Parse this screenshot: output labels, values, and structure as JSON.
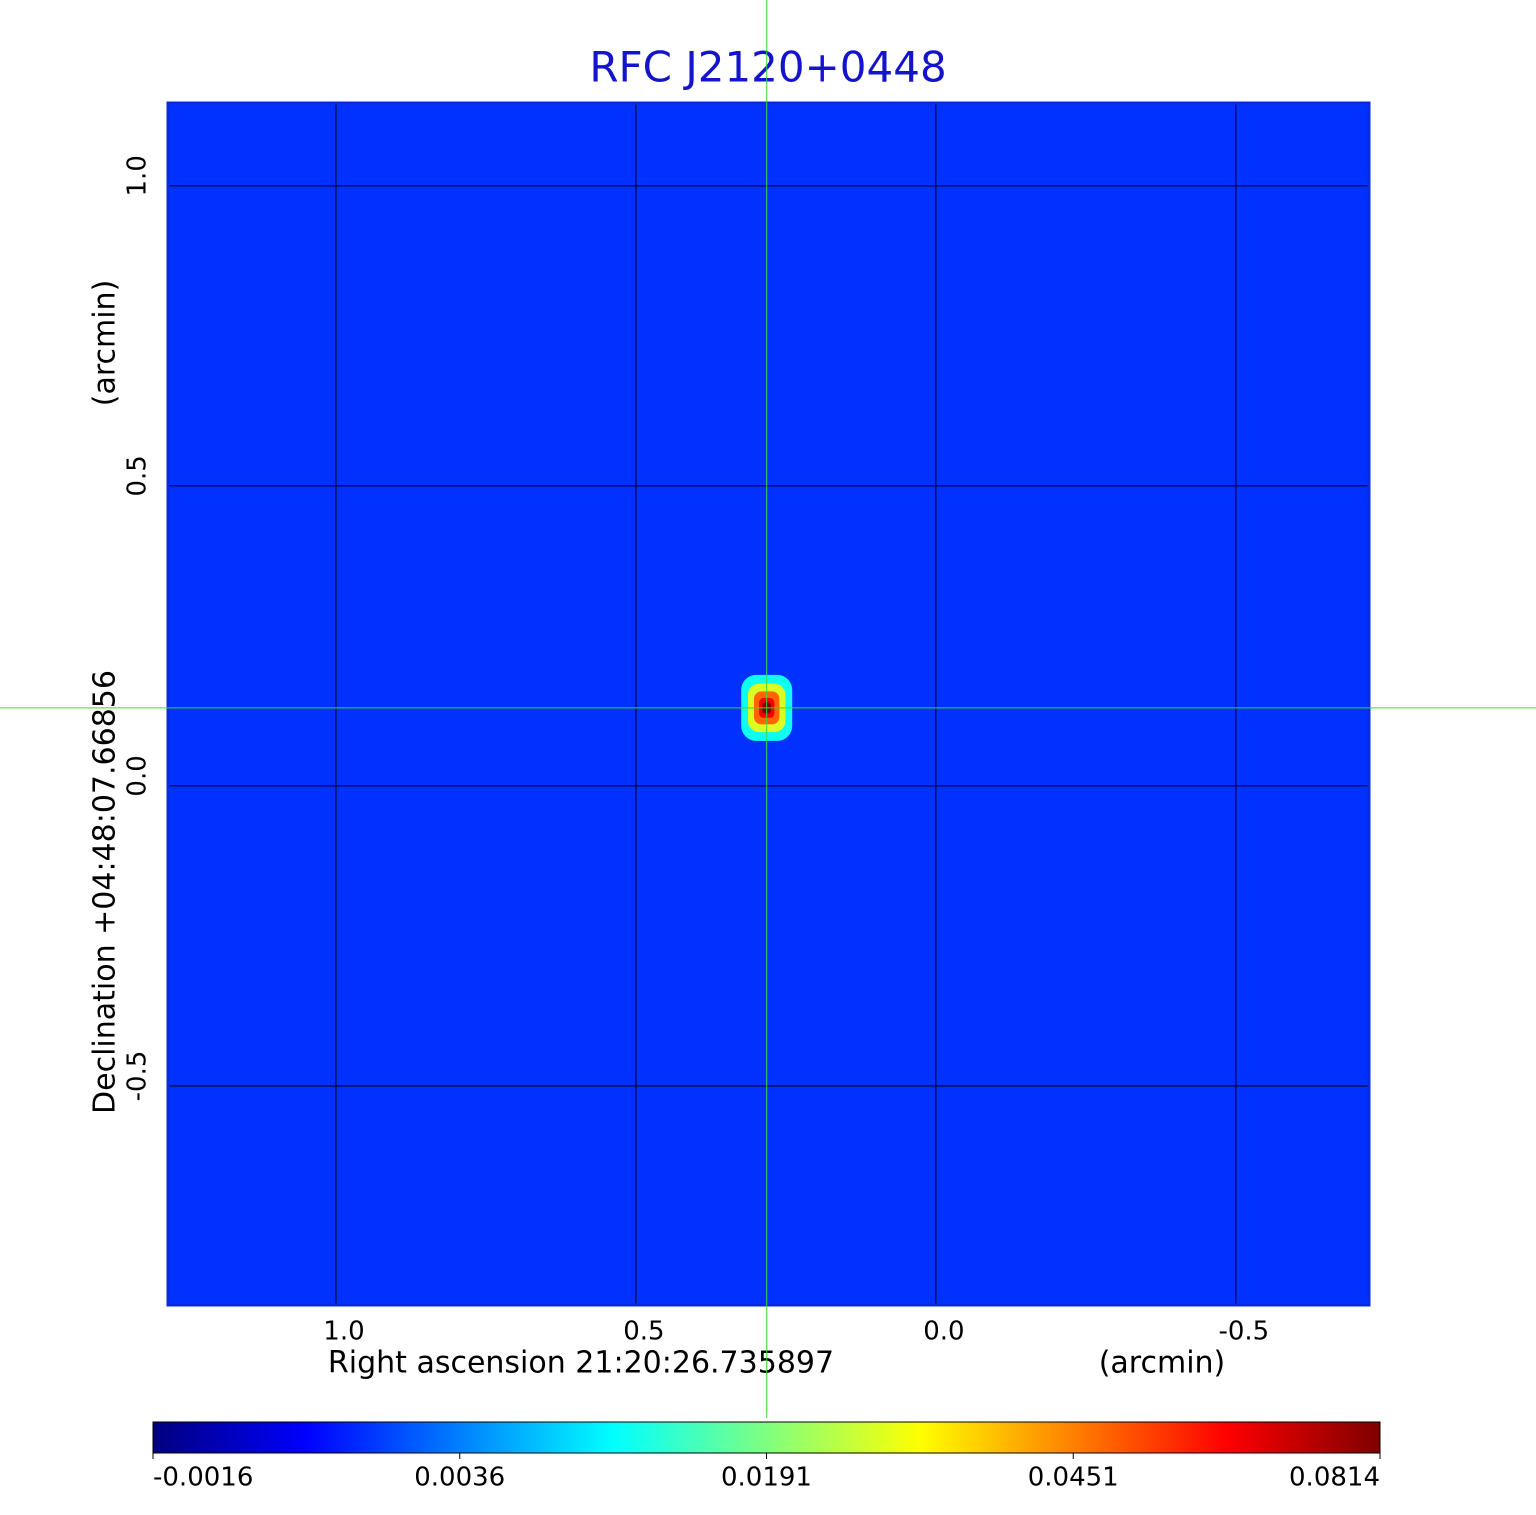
{
  "chart_data": {
    "type": "heatmap",
    "title": "RFC J2120+0448",
    "xlabel": "Right ascension  21:20:26.735897",
    "xunit": "(arcmin)",
    "ylabel": "Declination  +04:48:07.66856",
    "yunit": "(arcmin)",
    "xlim": [
      1.28,
      -0.722
    ],
    "ylim": [
      -0.865,
      1.138
    ],
    "xticks": [
      {
        "value": 1,
        "label": "1.0"
      },
      0.5,
      {
        "value": 0,
        "label": "0.0"
      },
      -0.5
    ],
    "yticks": [
      -0.5,
      {
        "value": 0,
        "label": "0.0"
      },
      0.5,
      {
        "value": 1,
        "label": "1.0"
      }
    ],
    "grid": true,
    "colormap": "jet",
    "background": 0.002,
    "source": {
      "x": 0.282,
      "y": 0.13,
      "value": 0.0814
    },
    "crosshair": {
      "x": 0.282,
      "y": 0.13,
      "color": "#33dd33"
    },
    "colorbar_lim": [
      -0.0016,
      0.0814
    ],
    "colorbar_ticks": [
      -0.0016,
      0.0036,
      0.0191,
      0.0451,
      0.0814
    ]
  }
}
